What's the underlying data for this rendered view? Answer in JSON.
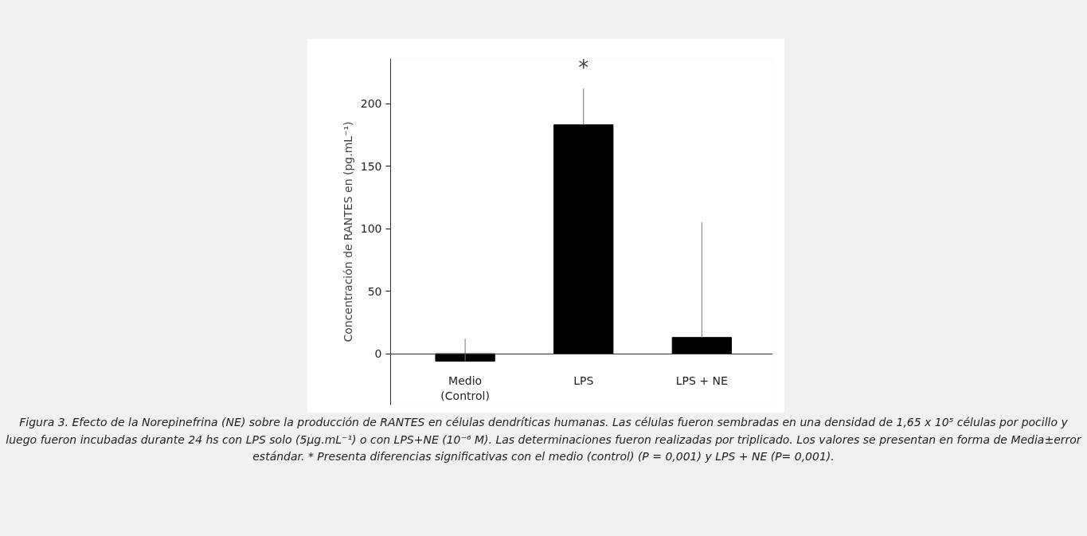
{
  "chart_data": {
    "type": "bar",
    "ylabel": "Concentración de RANTES en (pg.mL⁻¹)",
    "categories": [
      "Medio\n(Control)",
      "LPS",
      "LPS + NE"
    ],
    "values": [
      -6,
      183,
      13
    ],
    "color": "#000000",
    "errors": [
      [
        -6,
        12
      ],
      [
        183,
        212
      ],
      [
        13,
        105
      ]
    ],
    "ylim": [
      -41,
      236
    ],
    "yticks": [
      0,
      50,
      100,
      150,
      200
    ],
    "annotations": [
      {
        "text": "*",
        "x": "LPS",
        "y": 212
      },
      "Figura 3. Efecto de la Norepinefrina (NE) sobre la producción de RANTES en células dendríticas humanas. Las células fueron sembradas en una densidad de 1,65 x 10⁵ células por pocillo y luego fueron incubadas durante 24 hs con LPS solo (5µg.mL⁻¹) o con LPS+NE (10⁻⁶ M). Las determinaciones fueron realizadas por triplicado. Los valores se presentan en forma de Media±error estándar. * Presenta diferencias significativas con el medio (control) (P = 0,001) y LPS + NE (P= 0,001)."
    ]
  }
}
